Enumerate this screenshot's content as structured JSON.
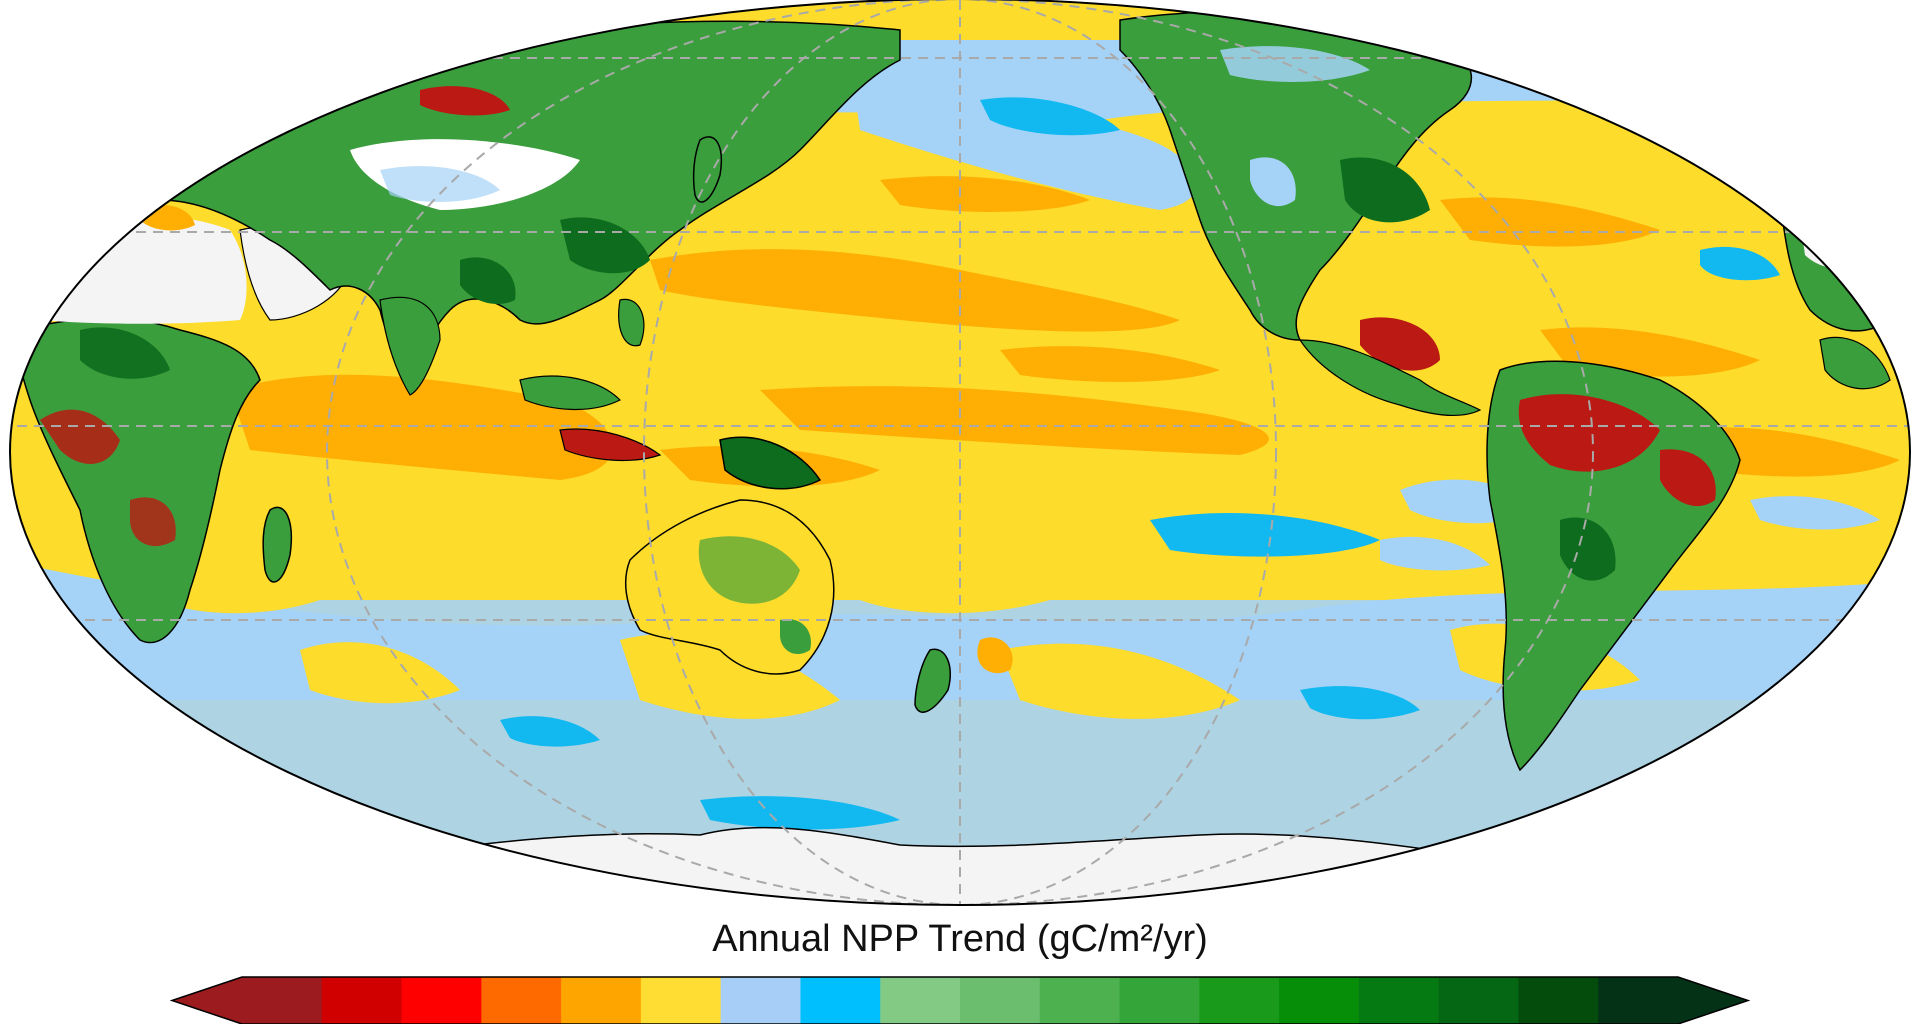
{
  "map": {
    "projection": "Mollweide",
    "center_longitude": 150,
    "graticule": "dashed",
    "colors": {
      "ocean_yellow": "#FDDC2C",
      "ocean_orange": "#FFAF04",
      "ocean_lightblue": "#A5D2F7",
      "ocean_blue": "#12B9F1",
      "land_green": "#3B9E3C",
      "land_darkgreen": "#0D6C1D",
      "land_darkred": "#BA1A13",
      "no_data": "#F4F4F4",
      "coast": "#000000",
      "grid": "#A9A9A9"
    }
  },
  "colorbar": {
    "title": "Annual NPP Trend (gC/m²/yr)",
    "extend": "both",
    "colors": [
      "#9B1B1E",
      "#D10000",
      "#FF0000",
      "#FF6A00",
      "#FFA500",
      "#FFDD33",
      "#A6CEF6",
      "#00BFFF",
      "#83CA84",
      "#6BBE6D",
      "#4DB14F",
      "#34A538",
      "#199A1A",
      "#068E08",
      "#067A12",
      "#056613",
      "#034C0C",
      "#033217"
    ]
  }
}
